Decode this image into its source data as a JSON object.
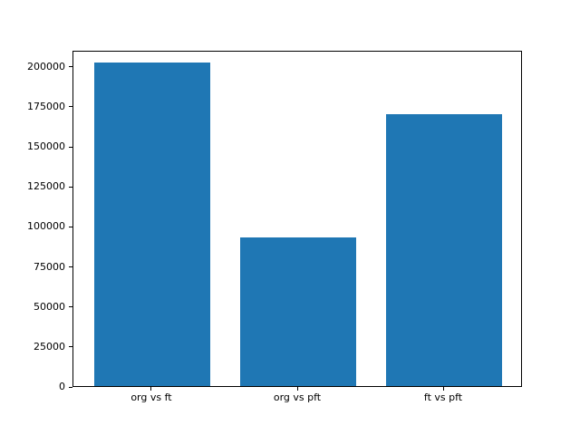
{
  "chart_data": {
    "type": "bar",
    "title": "",
    "xlabel": "",
    "ylabel": "",
    "categories": [
      "org vs ft",
      "org vs pft",
      "ft vs pft"
    ],
    "values": [
      202000,
      93000,
      170000
    ],
    "ylim": [
      0,
      210000
    ],
    "yticks": [
      0,
      25000,
      50000,
      75000,
      100000,
      125000,
      150000,
      175000,
      200000
    ],
    "bar_color": "#1f77b4",
    "axis_color": "#000000",
    "grid": false,
    "legend": null
  }
}
